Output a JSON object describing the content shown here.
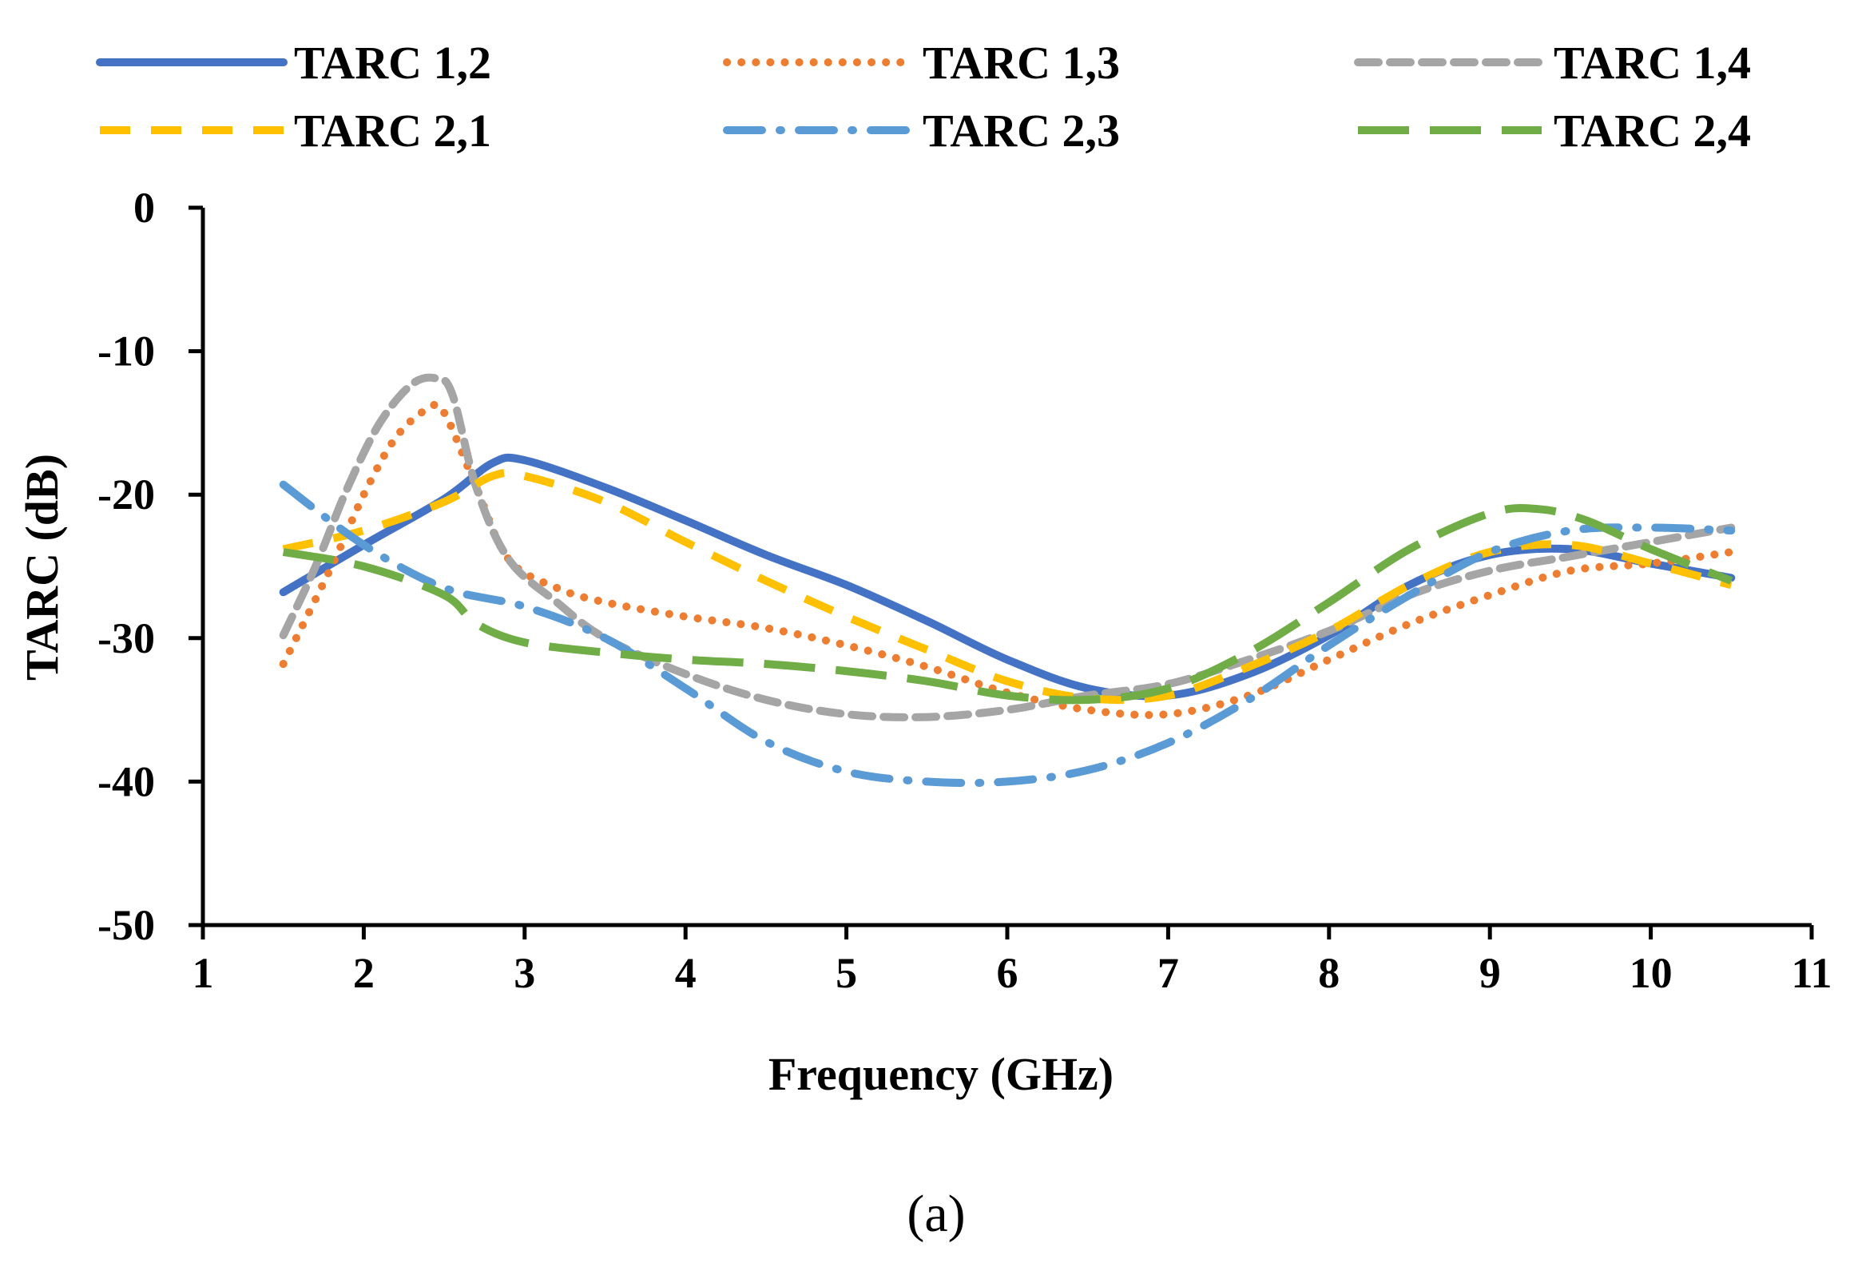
{
  "caption": "(a)",
  "chart_data": {
    "type": "line",
    "title": "",
    "xlabel": "Frequency (GHz)",
    "ylabel": "TARC (dB)",
    "xlim": [
      1,
      11
    ],
    "ylim": [
      -50,
      0
    ],
    "xticks": [
      1,
      2,
      3,
      4,
      5,
      6,
      7,
      8,
      9,
      10,
      11
    ],
    "yticks": [
      0,
      -10,
      -20,
      -30,
      -40,
      -50
    ],
    "grid": false,
    "legend_position": "top",
    "series": [
      {
        "name": "TARC 1,2",
        "color": "#4472C4",
        "dash": "solid",
        "x": [
          1.5,
          2.0,
          2.5,
          2.8,
          3.0,
          3.5,
          4.0,
          4.5,
          5.0,
          5.5,
          6.0,
          6.5,
          7.0,
          7.5,
          8.0,
          8.5,
          9.0,
          9.5,
          10.0,
          10.5
        ],
        "y": [
          -26.8,
          -23.5,
          -20.3,
          -17.8,
          -17.6,
          -19.5,
          -21.8,
          -24.2,
          -26.3,
          -28.8,
          -31.5,
          -33.5,
          -34.0,
          -32.5,
          -29.8,
          -26.3,
          -24.2,
          -23.8,
          -24.8,
          -25.8
        ]
      },
      {
        "name": "TARC 1,3",
        "color": "#ED7D31",
        "dash": "dot",
        "x": [
          1.5,
          1.8,
          2.0,
          2.2,
          2.4,
          2.5,
          2.7,
          2.9,
          3.2,
          3.5,
          4.0,
          4.5,
          5.0,
          5.5,
          6.0,
          6.5,
          7.0,
          7.5,
          8.0,
          8.5,
          9.0,
          9.5,
          10.0,
          10.5
        ],
        "y": [
          -31.8,
          -25.0,
          -20.0,
          -16.0,
          -14.0,
          -14.3,
          -19.5,
          -24.5,
          -26.5,
          -27.5,
          -28.5,
          -29.3,
          -30.5,
          -32.0,
          -33.8,
          -35.0,
          -35.3,
          -34.0,
          -31.5,
          -29.0,
          -27.0,
          -25.3,
          -24.8,
          -24.0
        ]
      },
      {
        "name": "TARC 1,4",
        "color": "#A5A5A5",
        "dash": "dash",
        "x": [
          1.5,
          1.7,
          1.9,
          2.1,
          2.3,
          2.45,
          2.55,
          2.7,
          2.9,
          3.2,
          3.5,
          4.0,
          4.5,
          5.0,
          5.5,
          6.0,
          6.5,
          7.0,
          7.5,
          8.0,
          8.5,
          9.0,
          9.5,
          10.0,
          10.5
        ],
        "y": [
          -29.8,
          -25.0,
          -19.5,
          -15.0,
          -12.3,
          -11.9,
          -13.0,
          -19.5,
          -24.5,
          -27.5,
          -30.0,
          -32.5,
          -34.3,
          -35.3,
          -35.5,
          -35.0,
          -34.0,
          -33.2,
          -31.5,
          -29.5,
          -27.0,
          -25.3,
          -24.3,
          -23.3,
          -22.3
        ]
      },
      {
        "name": "TARC 2,1",
        "color": "#FFC000",
        "dash": "longdash",
        "x": [
          1.5,
          2.0,
          2.5,
          2.8,
          3.0,
          3.5,
          4.0,
          4.5,
          5.0,
          5.5,
          6.0,
          6.5,
          7.0,
          7.5,
          8.0,
          8.5,
          9.0,
          9.5,
          10.0,
          10.5
        ],
        "y": [
          -23.8,
          -22.5,
          -20.5,
          -18.7,
          -18.7,
          -20.5,
          -23.3,
          -26.0,
          -28.5,
          -30.8,
          -33.0,
          -34.2,
          -34.0,
          -32.0,
          -29.5,
          -26.3,
          -24.0,
          -23.5,
          -24.8,
          -26.3
        ]
      },
      {
        "name": "TARC 2,3",
        "color": "#5B9BD5",
        "dash": "dashdot",
        "x": [
          1.5,
          2.0,
          2.5,
          3.0,
          3.5,
          4.0,
          4.5,
          5.0,
          5.5,
          6.0,
          6.5,
          7.0,
          7.5,
          8.0,
          8.5,
          9.0,
          9.5,
          10.0,
          10.5
        ],
        "y": [
          -19.3,
          -23.5,
          -26.5,
          -27.8,
          -30.0,
          -33.5,
          -37.2,
          -39.3,
          -40.0,
          -40.0,
          -39.2,
          -37.3,
          -34.3,
          -30.5,
          -27.0,
          -24.0,
          -22.5,
          -22.3,
          -22.5
        ]
      },
      {
        "name": "TARC 2,4",
        "color": "#70AD47",
        "dash": "xlongdash",
        "x": [
          1.5,
          2.0,
          2.5,
          2.7,
          3.0,
          3.5,
          4.0,
          4.5,
          5.0,
          5.5,
          6.0,
          6.5,
          7.0,
          7.5,
          8.0,
          8.5,
          9.0,
          9.3,
          9.6,
          10.0,
          10.5
        ],
        "y": [
          -24.0,
          -25.0,
          -27.0,
          -29.0,
          -30.3,
          -31.0,
          -31.5,
          -31.8,
          -32.3,
          -33.0,
          -34.0,
          -34.3,
          -33.5,
          -31.0,
          -27.5,
          -23.8,
          -21.3,
          -21.0,
          -21.8,
          -23.8,
          -26.0
        ]
      }
    ]
  }
}
